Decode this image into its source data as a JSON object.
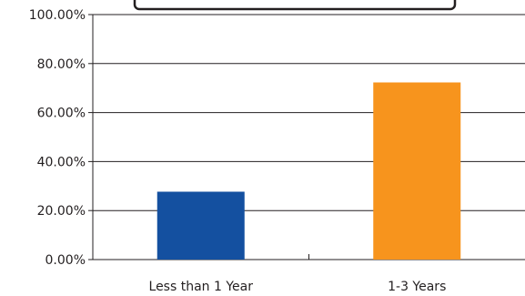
{
  "chart_data": {
    "type": "bar",
    "categories": [
      "Less than 1 Year",
      "1-3 Years"
    ],
    "values": [
      27.7,
      72.3
    ],
    "bar_colors": [
      "#1450a0",
      "#f7941d"
    ],
    "y_ticks": [
      "0.00%",
      "20.00%",
      "40.00%",
      "60.00%",
      "80.00%",
      "100.00%"
    ],
    "ylim": [
      0,
      100
    ],
    "grid": true,
    "title": "",
    "xlabel": "",
    "ylabel": ""
  }
}
